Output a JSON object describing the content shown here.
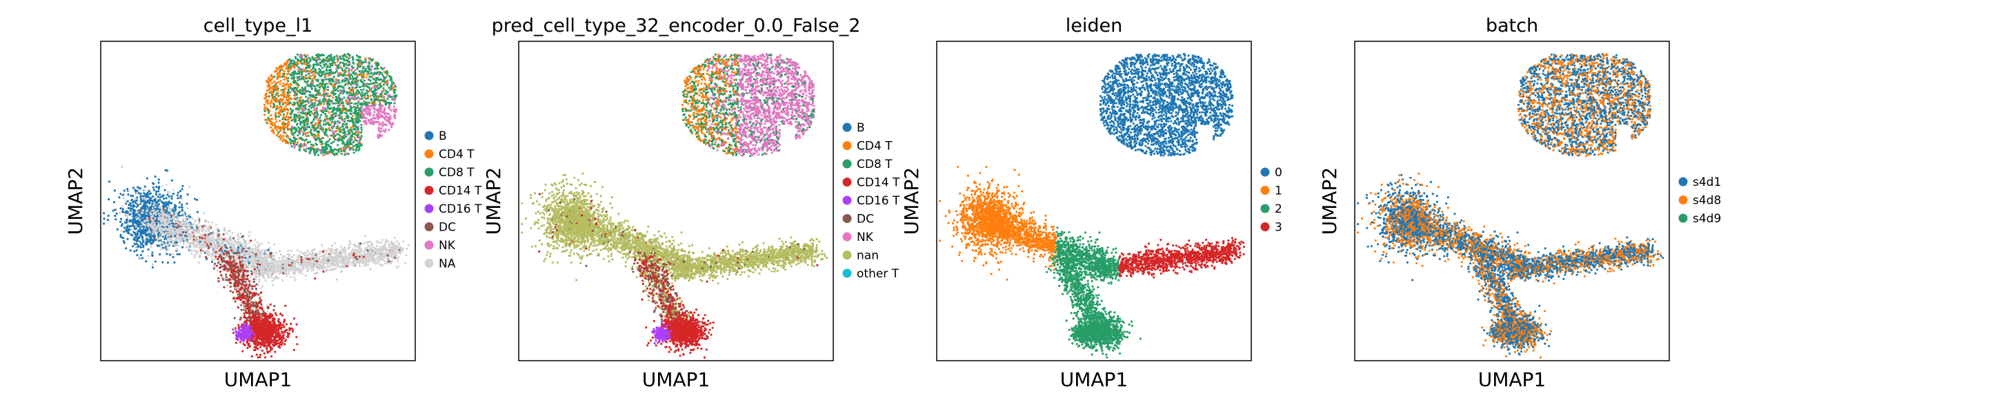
{
  "figure": {
    "background": "#ffffff"
  },
  "chart_data": [
    {
      "type": "scatter",
      "title": "cell_type_l1",
      "xlabel": "UMAP1",
      "ylabel": "UMAP2",
      "grid": false,
      "legend_placement": "right",
      "legend": [
        {
          "label": "B",
          "color": "#1f77b4"
        },
        {
          "label": "CD4 T",
          "color": "#ff7f0e"
        },
        {
          "label": "CD8 T",
          "color": "#279e68"
        },
        {
          "label": "CD14 T",
          "color": "#d62728"
        },
        {
          "label": "CD16 T",
          "color": "#aa40fc"
        },
        {
          "label": "DC",
          "color": "#8c564b"
        },
        {
          "label": "NK",
          "color": "#e377c2"
        },
        {
          "label": "NA",
          "color": "#d3d3d3"
        }
      ]
    },
    {
      "type": "scatter",
      "title": "pred_cell_type_32_encoder_0.0_False_2",
      "xlabel": "UMAP1",
      "ylabel": "UMAP2",
      "grid": false,
      "legend_placement": "right",
      "legend": [
        {
          "label": "B",
          "color": "#1f77b4"
        },
        {
          "label": "CD4 T",
          "color": "#ff7f0e"
        },
        {
          "label": "CD8 T",
          "color": "#279e68"
        },
        {
          "label": "CD14 T",
          "color": "#d62728"
        },
        {
          "label": "CD16 T",
          "color": "#aa40fc"
        },
        {
          "label": "DC",
          "color": "#8c564b"
        },
        {
          "label": "NK",
          "color": "#e377c2"
        },
        {
          "label": "nan",
          "color": "#b5bd61"
        },
        {
          "label": "other T",
          "color": "#17becf"
        }
      ]
    },
    {
      "type": "scatter",
      "title": "leiden",
      "xlabel": "UMAP1",
      "ylabel": "UMAP2",
      "grid": false,
      "legend_placement": "right",
      "legend": [
        {
          "label": "0",
          "color": "#1f77b4"
        },
        {
          "label": "1",
          "color": "#ff7f0e"
        },
        {
          "label": "2",
          "color": "#279e68"
        },
        {
          "label": "3",
          "color": "#d62728"
        }
      ]
    },
    {
      "type": "scatter",
      "title": "batch",
      "xlabel": "UMAP1",
      "ylabel": "UMAP2",
      "grid": false,
      "legend_placement": "right",
      "legend": [
        {
          "label": "s4d1",
          "color": "#1f77b4"
        },
        {
          "label": "s4d8",
          "color": "#ff7f0e"
        },
        {
          "label": "s4d9",
          "color": "#279e68"
        }
      ]
    }
  ]
}
